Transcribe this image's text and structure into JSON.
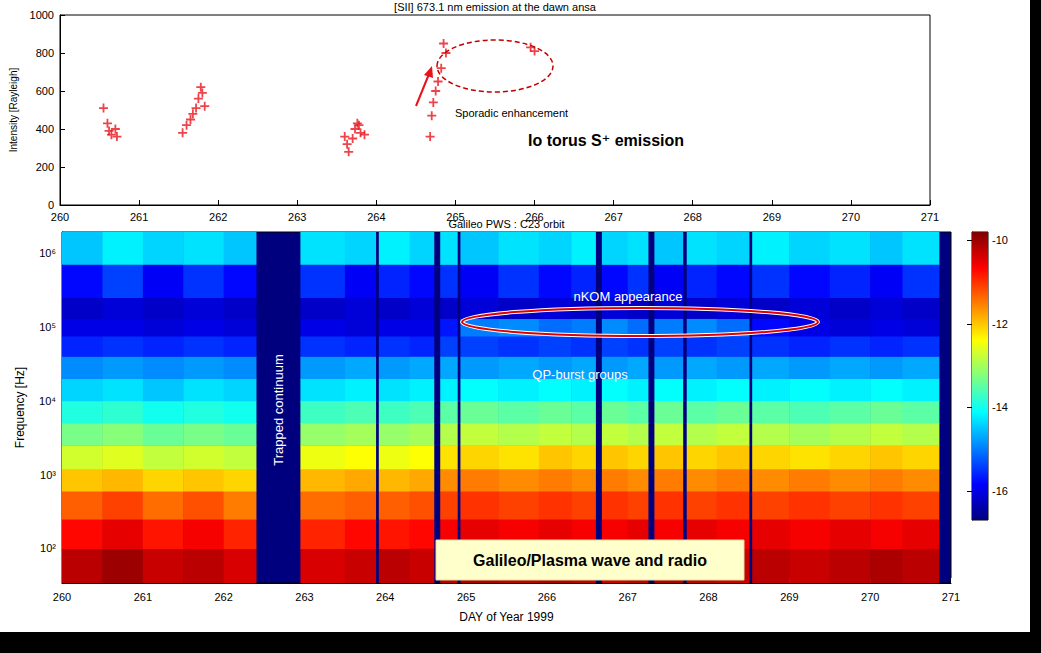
{
  "chart_data": [
    {
      "type": "scatter",
      "title": "[SII] 673.1 nm emission at the dawn ansa",
      "y_label": "Intensity [Rayleigh]",
      "x": [
        260.55,
        260.6,
        260.62,
        260.65,
        260.7,
        260.72,
        261.55,
        261.6,
        261.65,
        261.68,
        261.72,
        261.75,
        261.78,
        261.8,
        261.83,
        263.6,
        263.63,
        263.65,
        263.7,
        263.73,
        263.76,
        263.8,
        263.85,
        263.78,
        264.68,
        264.7,
        264.72,
        264.75,
        264.78,
        264.82,
        264.85,
        264.88,
        265.95,
        266.0
      ],
      "values": [
        510,
        430,
        390,
        370,
        400,
        360,
        380,
        420,
        450,
        480,
        510,
        560,
        620,
        590,
        520,
        360,
        320,
        280,
        350,
        400,
        430,
        380,
        370,
        420,
        360,
        470,
        540,
        600,
        650,
        720,
        850,
        800,
        830,
        810
      ],
      "color": "#e8141c",
      "marker": "plus",
      "xlim": [
        260,
        271
      ],
      "xticks": [
        260,
        261,
        262,
        263,
        264,
        265,
        266,
        267,
        268,
        269,
        270,
        271
      ],
      "ylim": [
        0,
        1000
      ],
      "yticks": [
        0,
        200,
        400,
        600,
        800,
        1000
      ],
      "grid": false,
      "annotations": [
        "Sporadic enhancement",
        "Io torus S⁺ emission"
      ]
    },
    {
      "type": "heatmap",
      "title": "Galileo PWS : C23 orbit",
      "x_label": "DAY of Year 1999",
      "y_label": "Frequency [Hz]",
      "log": "y",
      "x_edges": [
        260,
        260.5,
        261,
        261.5,
        262,
        262.4,
        262.95,
        263.5,
        263.88,
        263.92,
        264.3,
        264.6,
        264.68,
        264.89,
        264.93,
        265.4,
        265.9,
        266.3,
        266.6,
        266.68,
        267,
        267.25,
        267.33,
        267.68,
        267.73,
        268.1,
        268.5,
        268.54,
        269,
        269.5,
        270,
        270.4,
        270.85,
        271
      ],
      "y_edges": [
        34,
        100,
        250,
        600,
        1200,
        2500,
        5000,
        10000,
        20000,
        40000,
        75000,
        130000,
        250000,
        700000,
        1920000
      ],
      "cells": [
        [
          -10.2,
          -10.0,
          -10.3,
          -10.2,
          -10.4,
          null,
          -10.4,
          -10.3,
          null,
          -10.2,
          -10.3,
          null,
          -10.2,
          null,
          -10.1,
          -10.2,
          -10.1,
          -10.2,
          null,
          -10.3,
          -10.2,
          null,
          -10.1,
          null,
          -10.2,
          -10.3,
          null,
          -10.2,
          -10.3,
          -10.2,
          -10.1,
          -10.2,
          null
        ],
        [
          -10.7,
          -10.5,
          -10.8,
          -10.6,
          -10.9,
          null,
          -10.9,
          -10.7,
          null,
          -10.8,
          -10.7,
          null,
          -10.6,
          null,
          -10.5,
          -10.6,
          -10.5,
          -10.6,
          null,
          -10.6,
          -10.5,
          null,
          -10.6,
          null,
          -10.5,
          -10.6,
          null,
          -10.5,
          -10.6,
          -10.5,
          -10.6,
          -10.5,
          null
        ],
        [
          -11.3,
          -11.1,
          -11.4,
          -11.2,
          -11.5,
          null,
          -11.4,
          -11.3,
          null,
          -11.3,
          -11.2,
          null,
          -11.1,
          null,
          -11.0,
          -11.1,
          -11.0,
          -11.1,
          null,
          -11.0,
          -11.1,
          null,
          -11.0,
          null,
          -11.1,
          -11.0,
          null,
          -11.1,
          -11.0,
          -11.1,
          -11.0,
          -11.1,
          null
        ],
        [
          -12.0,
          -11.9,
          -12.1,
          -12.0,
          -12.1,
          null,
          -11.9,
          -11.8,
          null,
          -11.9,
          -11.8,
          null,
          -11.6,
          null,
          -11.5,
          -11.6,
          -11.5,
          -11.6,
          null,
          -11.5,
          -11.6,
          null,
          -11.5,
          null,
          -11.6,
          -11.5,
          null,
          -11.6,
          -11.5,
          -11.6,
          -11.5,
          -11.6,
          null
        ],
        [
          -12.7,
          -12.6,
          -12.8,
          -12.7,
          -12.8,
          null,
          -12.5,
          -12.4,
          null,
          -12.5,
          -12.4,
          null,
          -12.2,
          null,
          -12.1,
          -12.2,
          -12.0,
          -12.1,
          null,
          -12.0,
          -12.1,
          null,
          -12.0,
          null,
          -12.1,
          -12.0,
          null,
          -12.1,
          -12.2,
          -12.1,
          -12.0,
          -12.1,
          null
        ],
        [
          -13.3,
          -13.2,
          -13.4,
          -13.3,
          -13.4,
          null,
          -13.1,
          -13.0,
          null,
          -13.1,
          -13.0,
          null,
          -12.9,
          null,
          -12.8,
          -12.9,
          -12.8,
          -12.9,
          null,
          -12.8,
          -12.9,
          null,
          -12.8,
          null,
          -12.9,
          -12.8,
          null,
          -12.9,
          -13.0,
          -12.9,
          -12.8,
          -12.9,
          null
        ],
        [
          -13.9,
          -13.8,
          -14.0,
          -13.9,
          -14.0,
          null,
          -13.7,
          -13.6,
          null,
          -13.7,
          -13.6,
          null,
          -13.5,
          null,
          -13.4,
          -13.5,
          -13.4,
          -13.5,
          null,
          -13.4,
          -13.5,
          null,
          -13.4,
          null,
          -13.5,
          -13.4,
          null,
          -13.5,
          -13.6,
          -13.5,
          -13.4,
          -13.5,
          null
        ],
        [
          -14.4,
          -14.3,
          -14.5,
          -14.3,
          -14.4,
          null,
          -14.3,
          -14.2,
          null,
          -14.3,
          -14.2,
          null,
          -14.2,
          null,
          -14.1,
          -14.2,
          -14.1,
          -14.2,
          null,
          -14.1,
          -14.2,
          null,
          -14.1,
          null,
          -14.2,
          -14.1,
          null,
          -14.2,
          -14.1,
          -14.2,
          -14.1,
          -14.2,
          null
        ],
        [
          -14.9,
          -14.8,
          -14.9,
          -14.8,
          -14.9,
          null,
          -14.8,
          -14.7,
          null,
          -14.8,
          -14.7,
          null,
          -14.7,
          null,
          -14.8,
          -14.7,
          -14.8,
          -14.7,
          null,
          -14.8,
          -14.7,
          null,
          -14.8,
          null,
          -14.7,
          -14.8,
          null,
          -14.7,
          -14.8,
          -14.7,
          -14.8,
          -14.7,
          null
        ],
        [
          -15.6,
          -15.5,
          -15.6,
          -15.5,
          -15.6,
          null,
          -15.5,
          -15.6,
          null,
          -15.5,
          -15.6,
          null,
          -15.4,
          null,
          -15.4,
          -15.5,
          -15.4,
          -15.5,
          null,
          -15.4,
          -15.5,
          null,
          -15.4,
          null,
          -15.5,
          -15.4,
          null,
          -15.5,
          -15.6,
          -15.5,
          -15.6,
          -15.5,
          null
        ],
        [
          -16.0,
          -16.0,
          -16.1,
          -16.0,
          -16.1,
          null,
          -16.0,
          -16.1,
          null,
          -16.0,
          -16.0,
          null,
          -15.7,
          null,
          -15.0,
          -14.9,
          -15.1,
          -15.0,
          null,
          -14.9,
          -15.1,
          null,
          -15.0,
          null,
          -14.9,
          -15.1,
          null,
          -15.8,
          -16.0,
          -16.1,
          -16.0,
          -16.1,
          null
        ],
        [
          -16.2,
          -16.1,
          -16.2,
          -16.1,
          -16.2,
          null,
          -16.2,
          -16.1,
          null,
          -16.2,
          -16.1,
          null,
          -16.2,
          null,
          -16.1,
          -16.2,
          -16.1,
          -16.2,
          null,
          -16.1,
          -16.2,
          null,
          -16.1,
          null,
          -16.2,
          -16.1,
          null,
          -16.2,
          -16.1,
          -16.2,
          -16.1,
          -16.2,
          null
        ],
        [
          -15.8,
          -15.4,
          -15.9,
          -15.5,
          -15.8,
          null,
          -15.5,
          -15.9,
          null,
          -15.6,
          -15.8,
          null,
          -15.5,
          null,
          -15.9,
          -15.5,
          -15.8,
          -15.6,
          null,
          -15.8,
          -15.5,
          null,
          -15.9,
          null,
          -15.6,
          -15.8,
          null,
          -15.5,
          -15.8,
          -15.6,
          -15.9,
          -15.5,
          null
        ],
        [
          -14.5,
          -14.2,
          -14.4,
          -14.3,
          -14.5,
          null,
          -14.3,
          -14.4,
          null,
          -14.2,
          -14.4,
          null,
          -14.3,
          null,
          -14.5,
          -14.3,
          -14.4,
          -14.2,
          null,
          -14.4,
          -14.3,
          null,
          -14.5,
          null,
          -14.3,
          -14.4,
          null,
          -14.2,
          -14.4,
          -14.3,
          -14.5,
          -14.3,
          null
        ]
      ],
      "xlim": [
        260,
        271
      ],
      "xticks": [
        260,
        261,
        262,
        263,
        264,
        265,
        266,
        267,
        268,
        269,
        270,
        271
      ],
      "ylim": [
        34,
        1920000
      ],
      "yticks": [
        {
          "value": 100,
          "label": "10²"
        },
        {
          "value": 1000,
          "label": "10³"
        },
        {
          "value": 10000,
          "label": "10⁴"
        },
        {
          "value": 100000,
          "label": "10⁵"
        },
        {
          "value": 1000000,
          "label": "10⁶"
        }
      ],
      "colorbar": {
        "range": [
          -16.7,
          -9.8
        ],
        "ticks": [
          -10,
          -12,
          -14,
          -16
        ]
      },
      "grid": false,
      "annotations": [
        "nKOM appearance",
        "QP-burst groups",
        "Trapped continuum",
        "Galileo/Plasma wave and radio"
      ]
    }
  ]
}
